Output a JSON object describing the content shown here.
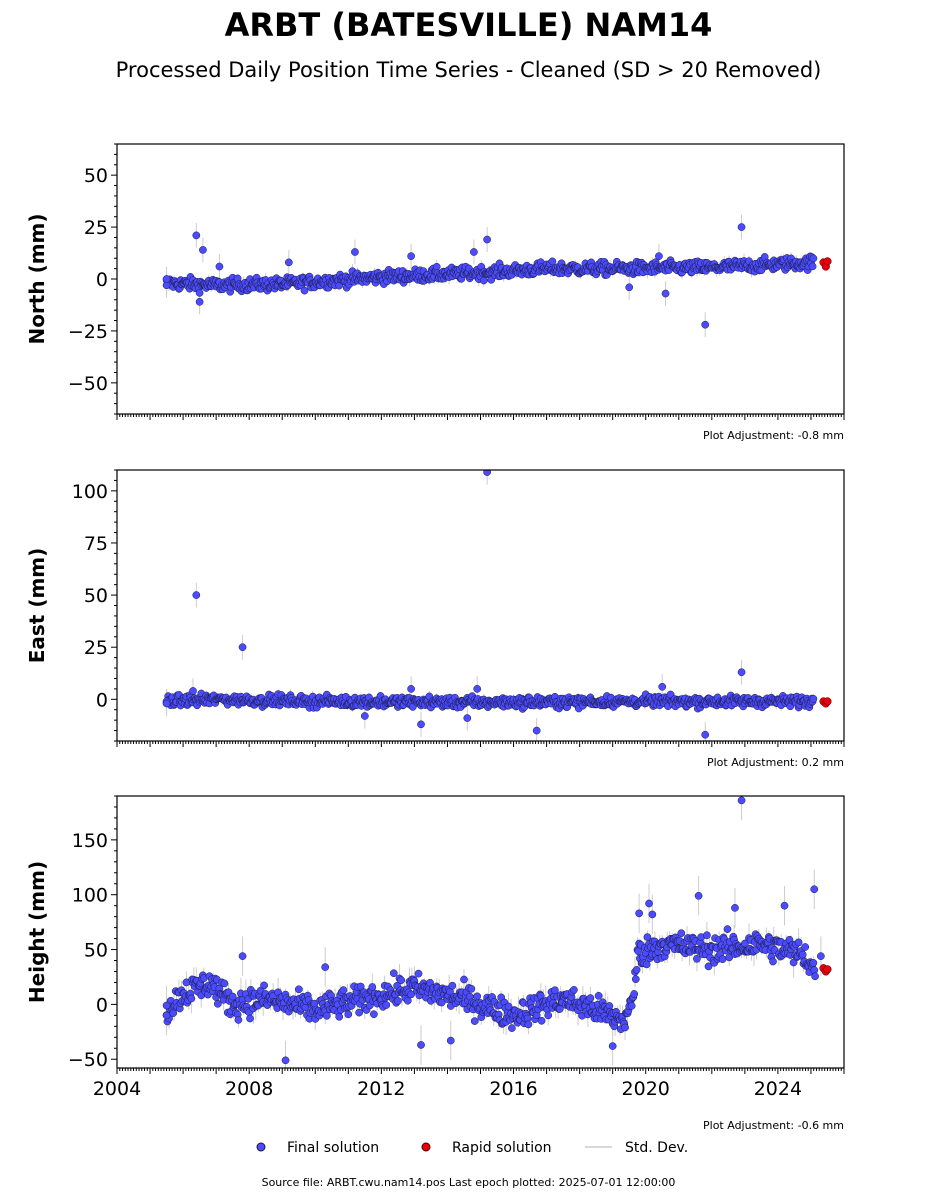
{
  "title": "ARBT (BATESVILLE) NAM14",
  "subtitle": "Processed Daily Position Time Series - Cleaned (SD > 20 Removed)",
  "footer": "Source file: ARBT.cwu.nam14.pos  Last epoch plotted: 2025-07-01 12:00:00",
  "colors": {
    "final": "#4b4bff",
    "rapid": "#e8000b",
    "stddev": "#cccccc",
    "edge": "#1a1a3a"
  },
  "legend": {
    "final": "Final solution",
    "rapid": "Rapid solution",
    "stddev": "Std. Dev."
  },
  "chart_data": [
    {
      "type": "scatter",
      "ylabel": "North (mm)",
      "ylim": [
        -65,
        65
      ],
      "yticks": [
        -50,
        -25,
        0,
        25,
        50
      ],
      "xlim": [
        2004,
        2026
      ],
      "adjustment": "Plot Adjustment: -0.8 mm",
      "trend": [
        [
          2005.5,
          -2
        ],
        [
          2007,
          -3
        ],
        [
          2009,
          -2.5
        ],
        [
          2012,
          1
        ],
        [
          2015,
          3
        ],
        [
          2017,
          5
        ],
        [
          2019,
          5
        ],
        [
          2022,
          5.5
        ],
        [
          2025.1,
          8
        ]
      ],
      "noise": 2.2,
      "outliers": [
        [
          2005.5,
          -3
        ],
        [
          2005.5,
          0
        ],
        [
          2006.4,
          21
        ],
        [
          2006.6,
          14
        ],
        [
          2006.5,
          -11
        ],
        [
          2007.1,
          6
        ],
        [
          2009.2,
          8
        ],
        [
          2011.2,
          13
        ],
        [
          2012.9,
          11
        ],
        [
          2014.8,
          13
        ],
        [
          2015.2,
          19
        ],
        [
          2019.5,
          -4
        ],
        [
          2020.4,
          11
        ],
        [
          2020.6,
          -7
        ],
        [
          2021.8,
          -22
        ],
        [
          2022.9,
          25
        ]
      ],
      "rapid": [
        [
          2025.38,
          8
        ],
        [
          2025.45,
          6
        ],
        [
          2025.5,
          8.5
        ]
      ]
    },
    {
      "type": "scatter",
      "ylabel": "East (mm)",
      "ylim": [
        -20,
        110
      ],
      "yticks": [
        0,
        25,
        50,
        75,
        100
      ],
      "xlim": [
        2004,
        2026
      ],
      "adjustment": "Plot Adjustment: 0.2 mm",
      "trend": [
        [
          2005.5,
          -1
        ],
        [
          2007,
          0
        ],
        [
          2010,
          -1
        ],
        [
          2015,
          -1.5
        ],
        [
          2020,
          -1
        ],
        [
          2025.1,
          -1
        ]
      ],
      "noise": 1.8,
      "outliers": [
        [
          2005.5,
          -1
        ],
        [
          2005.5,
          -2
        ],
        [
          2006.4,
          50
        ],
        [
          2007.8,
          25
        ],
        [
          2006.3,
          4
        ],
        [
          2011.5,
          -8
        ],
        [
          2012.9,
          5
        ],
        [
          2013.2,
          -12
        ],
        [
          2014.6,
          -9
        ],
        [
          2015.2,
          109
        ],
        [
          2014.9,
          5
        ],
        [
          2016.7,
          -15
        ],
        [
          2020.5,
          6
        ],
        [
          2021.8,
          -17
        ],
        [
          2022.9,
          13
        ]
      ],
      "rapid": [
        [
          2025.38,
          -1
        ],
        [
          2025.45,
          -2
        ],
        [
          2025.5,
          -1
        ]
      ]
    },
    {
      "type": "scatter",
      "ylabel": "Height (mm)",
      "ylim": [
        -58,
        190
      ],
      "yticks": [
        -50,
        0,
        50,
        100,
        150
      ],
      "xlim": [
        2004,
        2026
      ],
      "xticks": [
        2004,
        2008,
        2012,
        2016,
        2020,
        2024
      ],
      "adjustment": "Plot Adjustment: -0.6 mm",
      "trend": [
        [
          2005.5,
          -5
        ],
        [
          2006,
          10
        ],
        [
          2006.8,
          20
        ],
        [
          2007.5,
          0
        ],
        [
          2008.5,
          5
        ],
        [
          2010,
          -5
        ],
        [
          2011.5,
          5
        ],
        [
          2013,
          15
        ],
        [
          2014.5,
          5
        ],
        [
          2016,
          -10
        ],
        [
          2017.5,
          5
        ],
        [
          2018.5,
          -5
        ],
        [
          2019.3,
          -15
        ],
        [
          2019.6,
          0
        ],
        [
          2019.75,
          45
        ],
        [
          2020.5,
          55
        ],
        [
          2022,
          50
        ],
        [
          2023.5,
          55
        ],
        [
          2024.8,
          45
        ],
        [
          2025.15,
          30
        ]
      ],
      "noise": 9,
      "outliers": [
        [
          2005.5,
          -1
        ],
        [
          2005.5,
          -10
        ],
        [
          2007.8,
          44
        ],
        [
          2009.1,
          -51
        ],
        [
          2010.3,
          34
        ],
        [
          2013.2,
          -37
        ],
        [
          2014.1,
          -33
        ],
        [
          2019,
          -38
        ],
        [
          2019.8,
          83
        ],
        [
          2020.1,
          92
        ],
        [
          2020.2,
          82
        ],
        [
          2021.6,
          99
        ],
        [
          2022.9,
          186
        ],
        [
          2022.7,
          88
        ],
        [
          2024.2,
          90
        ],
        [
          2025.1,
          105
        ],
        [
          2025.3,
          44
        ]
      ],
      "rapid": [
        [
          2025.38,
          33
        ],
        [
          2025.45,
          30
        ],
        [
          2025.5,
          32
        ]
      ]
    }
  ]
}
